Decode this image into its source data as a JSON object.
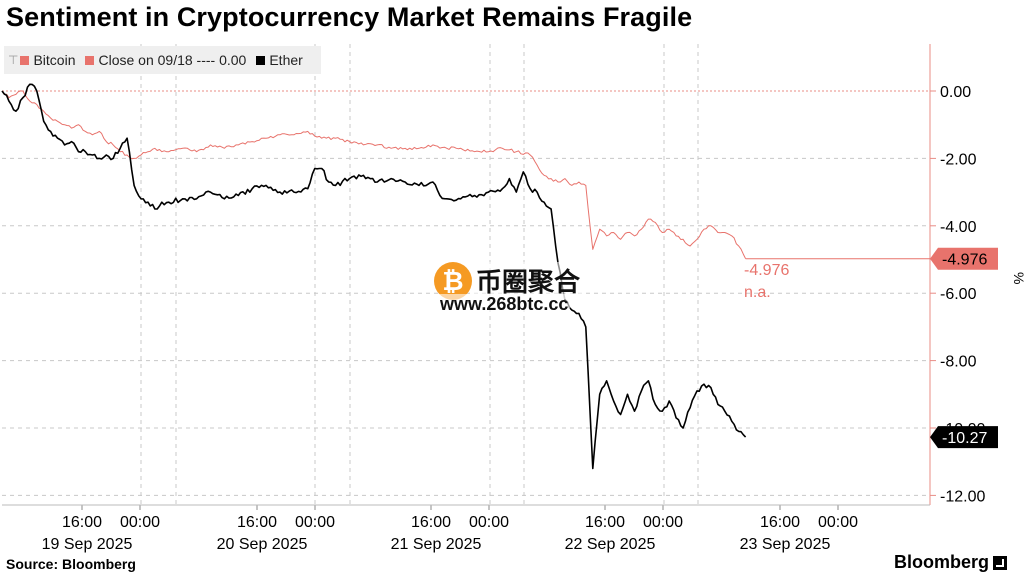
{
  "title": "Sentiment in Cryptocurrency Market Remains Fragile",
  "legend": {
    "bitcoin": "Bitcoin",
    "close": "Close on 09/18 ---- 0.00",
    "ether": "Ether"
  },
  "annotations": {
    "bitcoin_value": "-4.976",
    "bitcoin_na": "n.a."
  },
  "watermark": {
    "coin_symbol": "₿",
    "name": "币圈聚合",
    "url": "www.268btc.cc"
  },
  "footer": {
    "source": "Source: Bloomberg",
    "brand": "Bloomberg"
  },
  "colors": {
    "bitcoin": "#e8736c",
    "ether": "#000000",
    "axis": "#e88c86",
    "grid": "#c8c8c8"
  },
  "chart_data": {
    "type": "line",
    "ylabel": "%",
    "ylim": [
      -12.4,
      1.4
    ],
    "y_ticks": [
      "0.00",
      "-2.00",
      "-4.00",
      "-6.00",
      "-8.00",
      "-10.00",
      "-12.00"
    ],
    "y_tick_values": [
      0,
      -2,
      -4,
      -6,
      -8,
      -10,
      -12
    ],
    "x_ticks": [
      {
        "top": "16:00",
        "bottom": "19 Sep 2025"
      },
      {
        "top": "00:00",
        "bottom": ""
      },
      {
        "top": "16:00",
        "bottom": "20 Sep 2025"
      },
      {
        "top": "00:00",
        "bottom": ""
      },
      {
        "top": "16:00",
        "bottom": "21 Sep 2025"
      },
      {
        "top": "00:00",
        "bottom": ""
      },
      {
        "top": "16:00",
        "bottom": "22 Sep 2025"
      },
      {
        "top": "00:00",
        "bottom": ""
      },
      {
        "top": "16:00",
        "bottom": "23 Sep 2025"
      },
      {
        "top": "00:00",
        "bottom": ""
      }
    ],
    "x_range_hours": [
      0,
      128
    ],
    "reference_line": 0,
    "last_values": {
      "bitcoin": "-4.976",
      "ether": "-10.27"
    },
    "series": [
      {
        "name": "Bitcoin",
        "color": "#e8736c",
        "points": [
          [
            0,
            0.0
          ],
          [
            1,
            -0.2
          ],
          [
            2,
            -0.1
          ],
          [
            3,
            0.0
          ],
          [
            4,
            -0.3
          ],
          [
            5,
            -0.4
          ],
          [
            6,
            -0.6
          ],
          [
            7,
            -0.8
          ],
          [
            8,
            -0.9
          ],
          [
            9,
            -1.0
          ],
          [
            10,
            -1.1
          ],
          [
            11,
            -1.0
          ],
          [
            12,
            -1.2
          ],
          [
            13,
            -1.3
          ],
          [
            14,
            -1.2
          ],
          [
            15,
            -1.5
          ],
          [
            16,
            -1.6
          ],
          [
            17,
            -1.8
          ],
          [
            18,
            -1.9
          ],
          [
            19,
            -2.0
          ],
          [
            20,
            -1.9
          ],
          [
            21,
            -1.8
          ],
          [
            22,
            -1.7
          ],
          [
            23,
            -1.8
          ],
          [
            24,
            -1.8
          ],
          [
            26,
            -1.7
          ],
          [
            28,
            -1.8
          ],
          [
            30,
            -1.6
          ],
          [
            32,
            -1.7
          ],
          [
            34,
            -1.6
          ],
          [
            36,
            -1.5
          ],
          [
            38,
            -1.4
          ],
          [
            40,
            -1.3
          ],
          [
            42,
            -1.3
          ],
          [
            44,
            -1.2
          ],
          [
            46,
            -1.4
          ],
          [
            48,
            -1.4
          ],
          [
            50,
            -1.5
          ],
          [
            52,
            -1.6
          ],
          [
            54,
            -1.6
          ],
          [
            56,
            -1.7
          ],
          [
            58,
            -1.7
          ],
          [
            60,
            -1.7
          ],
          [
            62,
            -1.6
          ],
          [
            64,
            -1.7
          ],
          [
            66,
            -1.7
          ],
          [
            68,
            -1.8
          ],
          [
            70,
            -1.8
          ],
          [
            72,
            -1.7
          ],
          [
            74,
            -1.8
          ],
          [
            76,
            -1.9
          ],
          [
            77,
            -2.2
          ],
          [
            78,
            -2.5
          ],
          [
            79,
            -2.6
          ],
          [
            80,
            -2.7
          ],
          [
            81,
            -2.6
          ],
          [
            82,
            -2.8
          ],
          [
            83,
            -2.7
          ],
          [
            84,
            -2.8
          ],
          [
            85,
            -4.7
          ],
          [
            86,
            -4.1
          ],
          [
            87,
            -4.3
          ],
          [
            88,
            -4.2
          ],
          [
            89,
            -4.4
          ],
          [
            90,
            -4.2
          ],
          [
            91,
            -4.3
          ],
          [
            92,
            -4.1
          ],
          [
            93,
            -3.8
          ],
          [
            94,
            -3.9
          ],
          [
            95,
            -4.2
          ],
          [
            96,
            -4.1
          ],
          [
            97,
            -4.3
          ],
          [
            98,
            -4.4
          ],
          [
            99,
            -4.6
          ],
          [
            100,
            -4.4
          ],
          [
            101,
            -4.1
          ],
          [
            102,
            -4.0
          ],
          [
            103,
            -4.2
          ],
          [
            104,
            -4.2
          ],
          [
            105,
            -4.3
          ],
          [
            106,
            -4.6
          ],
          [
            107,
            -4.976
          ]
        ]
      },
      {
        "name": "Ether",
        "color": "#000000",
        "points": [
          [
            0,
            0.0
          ],
          [
            1,
            -0.3
          ],
          [
            2,
            -0.6
          ],
          [
            3,
            -0.2
          ],
          [
            4,
            0.2
          ],
          [
            5,
            0.0
          ],
          [
            6,
            -0.9
          ],
          [
            7,
            -1.2
          ],
          [
            8,
            -1.4
          ],
          [
            9,
            -1.6
          ],
          [
            10,
            -1.5
          ],
          [
            11,
            -1.8
          ],
          [
            12,
            -1.8
          ],
          [
            13,
            -1.9
          ],
          [
            14,
            -2.0
          ],
          [
            15,
            -1.9
          ],
          [
            16,
            -2.0
          ],
          [
            17,
            -1.7
          ],
          [
            18,
            -1.4
          ],
          [
            19,
            -2.8
          ],
          [
            20,
            -3.2
          ],
          [
            21,
            -3.3
          ],
          [
            22,
            -3.5
          ],
          [
            23,
            -3.3
          ],
          [
            24,
            -3.3
          ],
          [
            26,
            -3.2
          ],
          [
            28,
            -3.2
          ],
          [
            30,
            -3.0
          ],
          [
            32,
            -3.2
          ],
          [
            34,
            -3.1
          ],
          [
            36,
            -2.9
          ],
          [
            38,
            -2.8
          ],
          [
            40,
            -3.0
          ],
          [
            42,
            -3.0
          ],
          [
            44,
            -2.9
          ],
          [
            45,
            -2.3
          ],
          [
            46,
            -2.3
          ],
          [
            47,
            -2.7
          ],
          [
            48,
            -2.8
          ],
          [
            50,
            -2.6
          ],
          [
            52,
            -2.5
          ],
          [
            54,
            -2.7
          ],
          [
            56,
            -2.6
          ],
          [
            58,
            -2.7
          ],
          [
            60,
            -2.8
          ],
          [
            62,
            -2.7
          ],
          [
            63,
            -3.1
          ],
          [
            64,
            -3.2
          ],
          [
            66,
            -3.2
          ],
          [
            68,
            -3.1
          ],
          [
            70,
            -3.0
          ],
          [
            72,
            -2.9
          ],
          [
            73,
            -2.6
          ],
          [
            74,
            -3.0
          ],
          [
            75,
            -2.4
          ],
          [
            76,
            -2.9
          ],
          [
            77,
            -3.0
          ],
          [
            78,
            -3.3
          ],
          [
            79,
            -3.5
          ],
          [
            80,
            -5.1
          ],
          [
            81,
            -6.2
          ],
          [
            82,
            -6.5
          ],
          [
            83,
            -6.6
          ],
          [
            84,
            -7.0
          ],
          [
            85,
            -11.2
          ],
          [
            86,
            -9.0
          ],
          [
            87,
            -8.6
          ],
          [
            88,
            -9.2
          ],
          [
            89,
            -9.6
          ],
          [
            90,
            -9.0
          ],
          [
            91,
            -9.5
          ],
          [
            92,
            -8.9
          ],
          [
            93,
            -8.6
          ],
          [
            94,
            -9.3
          ],
          [
            95,
            -9.5
          ],
          [
            96,
            -9.2
          ],
          [
            97,
            -9.7
          ],
          [
            98,
            -10.0
          ],
          [
            99,
            -9.4
          ],
          [
            100,
            -8.9
          ],
          [
            101,
            -8.7
          ],
          [
            102,
            -8.8
          ],
          [
            103,
            -9.3
          ],
          [
            104,
            -9.5
          ],
          [
            105,
            -9.8
          ],
          [
            106,
            -10.1
          ],
          [
            107,
            -10.27
          ]
        ]
      }
    ]
  }
}
